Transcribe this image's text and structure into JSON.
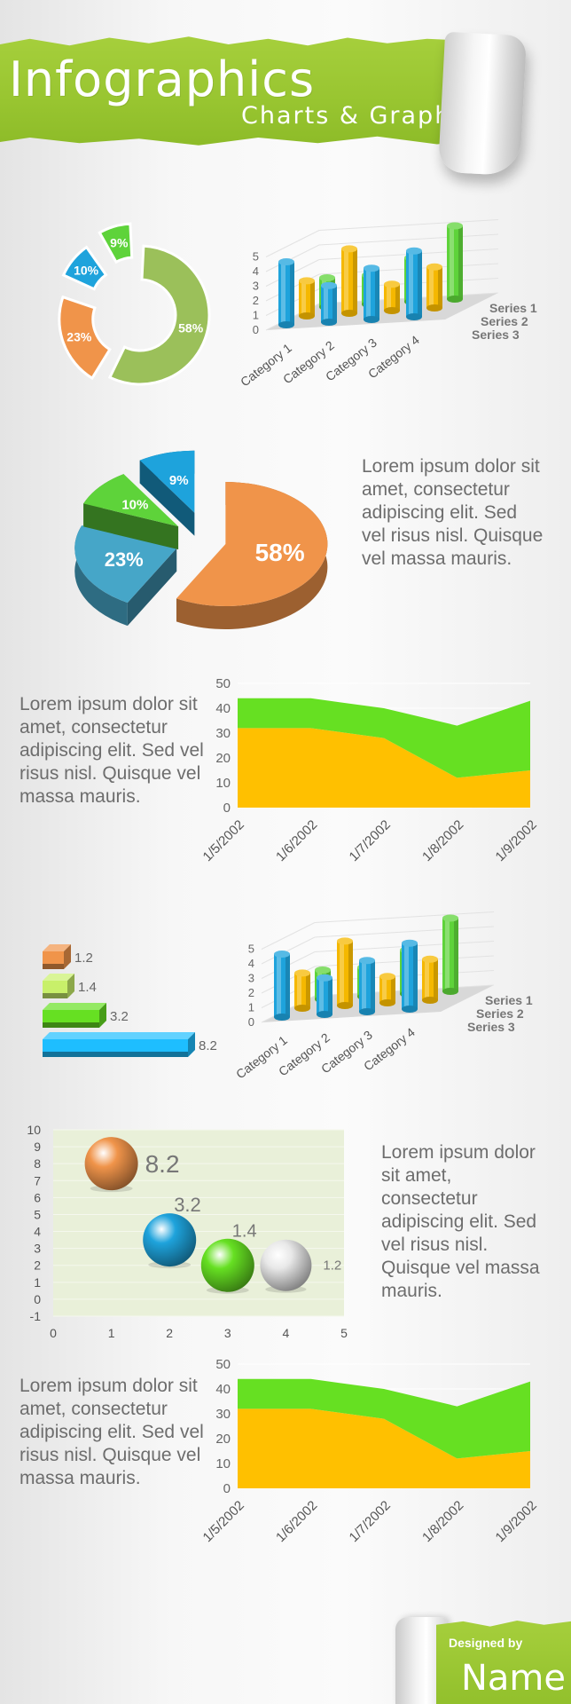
{
  "header": {
    "title": "Infographics",
    "subtitle": "Charts & Graphs"
  },
  "text_blocks": {
    "pie3d_text": "Lorem ipsum dolor sit amet, consectetur adipiscing elit. Sed vel risus nisl. Quisque vel massa mauris.",
    "area1_text": "Lorem ipsum dolor sit amet, consectetur adipiscing elit. Sed vel risus nisl. Quisque vel massa mauris.",
    "bubble_text": "Lorem ipsum dolor sit amet, consectetur adipiscing elit. Sed vel risus nisl. Quisque vel massa mauris.",
    "area2_text": "Lorem ipsum dolor sit amet, consectetur adipiscing elit. Sed vel risus nisl. Quisque vel massa mauris."
  },
  "footer": {
    "designed_by": "Designed by",
    "name": "Name"
  },
  "chart_data": [
    {
      "id": "donut",
      "type": "pie",
      "categories": [
        "58%",
        "23%",
        "10%",
        "9%"
      ],
      "values": [
        58,
        23,
        10,
        9
      ],
      "labels": [
        "58%",
        "23%",
        "10%",
        "9%"
      ],
      "colors": [
        "#9bc05a",
        "#f0944a",
        "#1ea3dc",
        "#5ed33a"
      ]
    },
    {
      "id": "bar3d_1",
      "type": "bar",
      "categories": [
        "Category 1",
        "Category 2",
        "Category 3",
        "Category 4"
      ],
      "series": [
        {
          "name": "Series 1",
          "values": [
            4.3,
            2.5,
            3.5,
            4.5
          ],
          "color": "#1ea3dc"
        },
        {
          "name": "Series 2",
          "values": [
            2.4,
            4.4,
            1.8,
            2.8
          ],
          "color": "#f5b800"
        },
        {
          "name": "Series 3",
          "values": [
            2.0,
            2.0,
            3.0,
            5.0
          ],
          "color": "#5ed33a"
        }
      ],
      "ylim": [
        0,
        5
      ],
      "yticks": [
        "0",
        "1",
        "2",
        "3",
        "4",
        "5"
      ]
    },
    {
      "id": "pie3d",
      "type": "pie",
      "categories": [
        "58%",
        "23%",
        "10%",
        "9%"
      ],
      "values": [
        58,
        23,
        10,
        9
      ],
      "labels": [
        "58%",
        "23%",
        "10%",
        "9%"
      ],
      "colors": [
        "#f0944a",
        "#46a6c8",
        "#5ed33a",
        "#1ea3dc"
      ]
    },
    {
      "id": "area_1",
      "type": "area",
      "categories": [
        "1/5/2002",
        "1/6/2002",
        "1/7/2002",
        "1/8/2002",
        "1/9/2002"
      ],
      "series": [
        {
          "name": "",
          "values": [
            32,
            32,
            28,
            12,
            15
          ],
          "color": "#ffc000"
        },
        {
          "name": "",
          "values": [
            12,
            12,
            12,
            21,
            28
          ],
          "color": "#66e022"
        }
      ],
      "ylim": [
        0,
        50
      ],
      "yticks": [
        "0",
        "10",
        "20",
        "30",
        "40",
        "50"
      ]
    },
    {
      "id": "hbar",
      "type": "bar",
      "categories": [
        "",
        "",
        "",
        ""
      ],
      "values": [
        1.2,
        1.4,
        3.2,
        8.2
      ],
      "labels": [
        "1.2",
        "1.4",
        "3.2",
        "8.2"
      ],
      "colors": [
        "#f0944a",
        "#c8f06a",
        "#66e022",
        "#1ebeff"
      ]
    },
    {
      "id": "bar3d_2",
      "type": "bar",
      "categories": [
        "Category 1",
        "Category 2",
        "Category 3",
        "Category 4"
      ],
      "series": [
        {
          "name": "Series 1",
          "values": [
            4.3,
            2.5,
            3.5,
            4.5
          ],
          "color": "#1ea3dc"
        },
        {
          "name": "Series 2",
          "values": [
            2.4,
            4.4,
            1.8,
            2.8
          ],
          "color": "#f5b800"
        },
        {
          "name": "Series 3",
          "values": [
            2.0,
            2.0,
            3.0,
            5.0
          ],
          "color": "#5ed33a"
        }
      ],
      "ylim": [
        0,
        5
      ],
      "yticks": [
        "0",
        "1",
        "2",
        "3",
        "4",
        "5"
      ]
    },
    {
      "id": "bubble",
      "type": "scatter",
      "points": [
        {
          "x": 1,
          "y": 8,
          "label": "8.2",
          "color": "#f0944a"
        },
        {
          "x": 2,
          "y": 3.5,
          "label": "3.2",
          "color": "#1ea3dc"
        },
        {
          "x": 3,
          "y": 2,
          "label": "1.4",
          "color": "#66e022"
        },
        {
          "x": 4,
          "y": 2,
          "label": "1.2",
          "color": "#e8e8e8"
        }
      ],
      "xlim": [
        0,
        5
      ],
      "ylim": [
        -1,
        10
      ],
      "xticks": [
        "0",
        "1",
        "2",
        "3",
        "4",
        "5"
      ],
      "yticks": [
        "-1",
        "0",
        "1",
        "2",
        "3",
        "4",
        "5",
        "6",
        "7",
        "8",
        "9",
        "10"
      ]
    },
    {
      "id": "area_2",
      "type": "area",
      "categories": [
        "1/5/2002",
        "1/6/2002",
        "1/7/2002",
        "1/8/2002",
        "1/9/2002"
      ],
      "series": [
        {
          "name": "",
          "values": [
            32,
            32,
            28,
            12,
            15
          ],
          "color": "#ffc000"
        },
        {
          "name": "",
          "values": [
            12,
            12,
            12,
            21,
            28
          ],
          "color": "#66e022"
        }
      ],
      "ylim": [
        0,
        50
      ],
      "yticks": [
        "0",
        "10",
        "20",
        "30",
        "40",
        "50"
      ]
    }
  ]
}
